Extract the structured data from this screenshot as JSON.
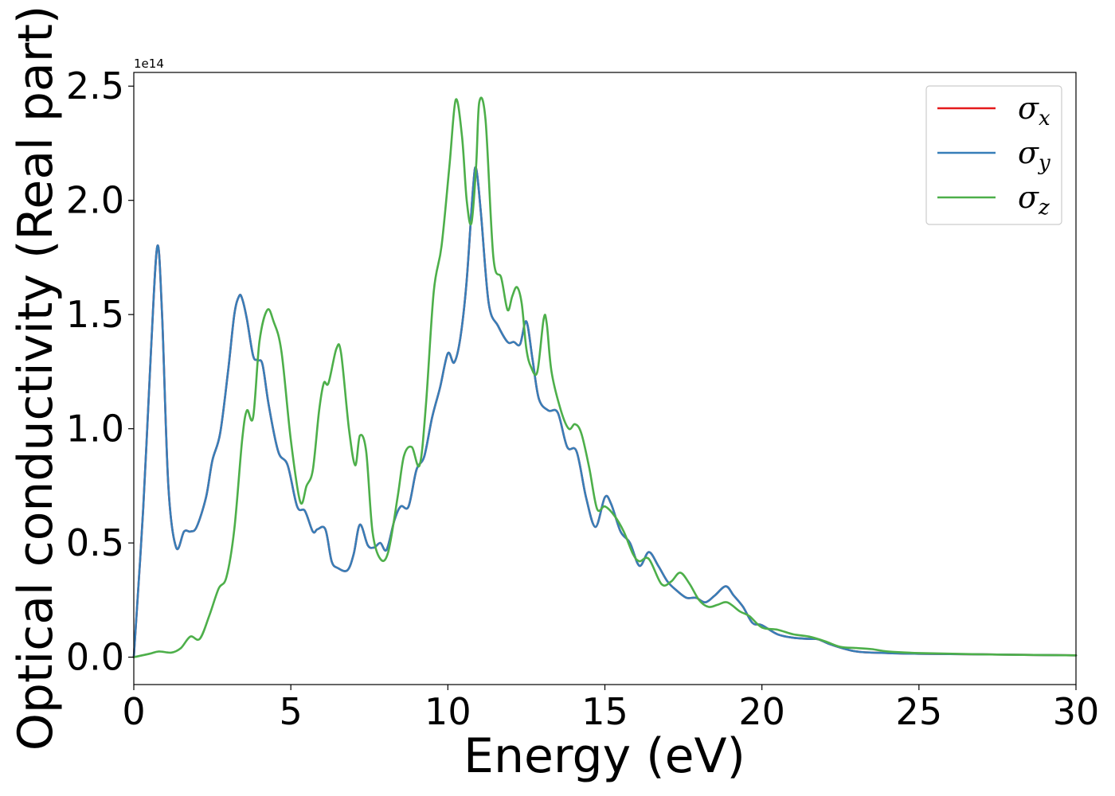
{
  "chart_data": {
    "type": "line",
    "xlabel": "Energy (eV)",
    "ylabel": "Optical conductivity (Real part)",
    "y_offset_label": "1e14",
    "xlim": [
      0,
      30
    ],
    "ylim": [
      -0.12,
      2.56
    ],
    "xticks": [
      0,
      5,
      10,
      15,
      20,
      25,
      30
    ],
    "yticks": [
      0.0,
      0.5,
      1.0,
      1.5,
      2.0,
      2.5
    ],
    "xtick_labels": [
      "0",
      "5",
      "10",
      "15",
      "20",
      "25",
      "30"
    ],
    "ytick_labels": [
      "0.0",
      "0.5",
      "1.0",
      "1.5",
      "2.0",
      "2.5"
    ],
    "grid": false,
    "legend_position": "top-right",
    "series": [
      {
        "name": "σx",
        "symbol": "σ",
        "subscript": "x",
        "color": "#e41a1c",
        "x": [
          0,
          0.3,
          0.55,
          0.75,
          0.9,
          1.1,
          1.35,
          1.6,
          1.8,
          2.0,
          2.3,
          2.5,
          2.75,
          3.0,
          3.2,
          3.35,
          3.45,
          3.6,
          3.8,
          3.95,
          4.1,
          4.3,
          4.6,
          4.9,
          5.2,
          5.45,
          5.7,
          5.85,
          6.1,
          6.3,
          6.5,
          6.8,
          7.0,
          7.2,
          7.45,
          7.65,
          7.85,
          8.05,
          8.3,
          8.5,
          8.75,
          9.0,
          9.25,
          9.5,
          9.75,
          10.0,
          10.2,
          10.4,
          10.6,
          10.8,
          10.9,
          11.05,
          11.3,
          11.6,
          11.9,
          12.1,
          12.3,
          12.5,
          12.7,
          12.9,
          13.2,
          13.5,
          13.8,
          14.1,
          14.4,
          14.7,
          15.0,
          15.2,
          15.5,
          15.8,
          16.1,
          16.4,
          16.7,
          17.0,
          17.3,
          17.6,
          17.9,
          18.2,
          18.5,
          18.85,
          19.1,
          19.4,
          19.7,
          20.0,
          20.5,
          21.0,
          21.5,
          21.8,
          22.2,
          23.0,
          24.0,
          25.0,
          27.0,
          30.0
        ],
        "y": [
          0.0,
          0.65,
          1.35,
          1.8,
          1.5,
          0.75,
          0.48,
          0.55,
          0.55,
          0.57,
          0.7,
          0.86,
          0.98,
          1.25,
          1.5,
          1.58,
          1.57,
          1.48,
          1.32,
          1.3,
          1.28,
          1.1,
          0.9,
          0.84,
          0.66,
          0.64,
          0.55,
          0.56,
          0.56,
          0.42,
          0.39,
          0.38,
          0.45,
          0.58,
          0.49,
          0.48,
          0.5,
          0.47,
          0.6,
          0.66,
          0.66,
          0.82,
          0.88,
          1.05,
          1.18,
          1.33,
          1.29,
          1.4,
          1.65,
          2.05,
          2.14,
          1.95,
          1.55,
          1.45,
          1.38,
          1.38,
          1.37,
          1.47,
          1.3,
          1.13,
          1.08,
          1.07,
          0.92,
          0.9,
          0.7,
          0.57,
          0.7,
          0.67,
          0.55,
          0.5,
          0.4,
          0.46,
          0.4,
          0.33,
          0.29,
          0.26,
          0.26,
          0.24,
          0.27,
          0.31,
          0.27,
          0.22,
          0.15,
          0.14,
          0.1,
          0.085,
          0.08,
          0.078,
          0.055,
          0.025,
          0.018,
          0.015,
          0.012,
          0.008
        ]
      },
      {
        "name": "σy",
        "symbol": "σ",
        "subscript": "y",
        "color": "#377eb8",
        "x": [
          0,
          0.3,
          0.55,
          0.75,
          0.9,
          1.1,
          1.35,
          1.6,
          1.8,
          2.0,
          2.3,
          2.5,
          2.75,
          3.0,
          3.2,
          3.35,
          3.45,
          3.6,
          3.8,
          3.95,
          4.1,
          4.3,
          4.6,
          4.9,
          5.2,
          5.45,
          5.7,
          5.85,
          6.1,
          6.3,
          6.5,
          6.8,
          7.0,
          7.2,
          7.45,
          7.65,
          7.85,
          8.05,
          8.3,
          8.5,
          8.75,
          9.0,
          9.25,
          9.5,
          9.75,
          10.0,
          10.2,
          10.4,
          10.6,
          10.8,
          10.9,
          11.05,
          11.3,
          11.6,
          11.9,
          12.1,
          12.3,
          12.5,
          12.7,
          12.9,
          13.2,
          13.5,
          13.8,
          14.1,
          14.4,
          14.7,
          15.0,
          15.2,
          15.5,
          15.8,
          16.1,
          16.4,
          16.7,
          17.0,
          17.3,
          17.6,
          17.9,
          18.2,
          18.5,
          18.85,
          19.1,
          19.4,
          19.7,
          20.0,
          20.5,
          21.0,
          21.5,
          21.8,
          22.2,
          23.0,
          24.0,
          25.0,
          27.0,
          30.0
        ],
        "y": [
          0.0,
          0.65,
          1.35,
          1.8,
          1.5,
          0.75,
          0.48,
          0.55,
          0.55,
          0.57,
          0.7,
          0.86,
          0.98,
          1.25,
          1.5,
          1.58,
          1.57,
          1.48,
          1.32,
          1.3,
          1.28,
          1.1,
          0.9,
          0.84,
          0.66,
          0.64,
          0.55,
          0.56,
          0.56,
          0.42,
          0.39,
          0.38,
          0.45,
          0.58,
          0.49,
          0.48,
          0.5,
          0.47,
          0.6,
          0.66,
          0.66,
          0.82,
          0.88,
          1.05,
          1.18,
          1.33,
          1.29,
          1.4,
          1.65,
          2.05,
          2.14,
          1.95,
          1.55,
          1.45,
          1.38,
          1.38,
          1.37,
          1.47,
          1.3,
          1.13,
          1.08,
          1.07,
          0.92,
          0.9,
          0.7,
          0.57,
          0.7,
          0.67,
          0.55,
          0.5,
          0.4,
          0.46,
          0.4,
          0.33,
          0.29,
          0.26,
          0.26,
          0.24,
          0.27,
          0.31,
          0.27,
          0.22,
          0.15,
          0.14,
          0.1,
          0.085,
          0.08,
          0.078,
          0.055,
          0.025,
          0.018,
          0.015,
          0.012,
          0.008
        ]
      },
      {
        "name": "σz",
        "symbol": "σ",
        "subscript": "z",
        "color": "#4daf4a",
        "x": [
          0,
          0.5,
          0.8,
          1.2,
          1.5,
          1.8,
          2.1,
          2.4,
          2.7,
          2.95,
          3.2,
          3.45,
          3.6,
          3.8,
          4.0,
          4.25,
          4.45,
          4.7,
          5.0,
          5.3,
          5.5,
          5.7,
          5.9,
          6.05,
          6.2,
          6.45,
          6.6,
          6.85,
          7.05,
          7.2,
          7.4,
          7.6,
          7.85,
          8.1,
          8.4,
          8.6,
          8.85,
          9.1,
          9.3,
          9.55,
          9.8,
          10.05,
          10.25,
          10.45,
          10.6,
          10.75,
          10.9,
          11.0,
          11.2,
          11.45,
          11.7,
          11.9,
          12.05,
          12.2,
          12.35,
          12.5,
          12.65,
          12.85,
          13.05,
          13.15,
          13.3,
          13.6,
          13.85,
          14.05,
          14.25,
          14.5,
          14.75,
          15.0,
          15.3,
          15.6,
          15.9,
          16.1,
          16.4,
          16.8,
          17.1,
          17.4,
          17.7,
          18.0,
          18.3,
          18.6,
          18.9,
          19.3,
          19.6,
          20.0,
          20.5,
          21.0,
          21.5,
          22.0,
          22.5,
          23.0,
          23.5,
          24.0,
          25.0,
          27.0,
          30.0
        ],
        "y": [
          0.0,
          0.015,
          0.025,
          0.02,
          0.04,
          0.09,
          0.08,
          0.18,
          0.3,
          0.35,
          0.56,
          0.95,
          1.08,
          1.05,
          1.38,
          1.52,
          1.47,
          1.34,
          0.95,
          0.68,
          0.75,
          0.82,
          1.08,
          1.2,
          1.2,
          1.35,
          1.33,
          1.0,
          0.84,
          0.97,
          0.9,
          0.55,
          0.43,
          0.46,
          0.7,
          0.88,
          0.92,
          0.84,
          1.1,
          1.6,
          1.8,
          2.15,
          2.44,
          2.28,
          2.0,
          1.9,
          2.15,
          2.43,
          2.35,
          1.75,
          1.66,
          1.52,
          1.58,
          1.62,
          1.55,
          1.35,
          1.27,
          1.25,
          1.48,
          1.46,
          1.25,
          1.08,
          1.0,
          1.02,
          0.98,
          0.83,
          0.65,
          0.66,
          0.62,
          0.55,
          0.45,
          0.42,
          0.43,
          0.32,
          0.33,
          0.37,
          0.32,
          0.25,
          0.22,
          0.23,
          0.24,
          0.2,
          0.18,
          0.13,
          0.12,
          0.1,
          0.09,
          0.07,
          0.045,
          0.04,
          0.035,
          0.025,
          0.018,
          0.012,
          0.008
        ]
      }
    ]
  }
}
